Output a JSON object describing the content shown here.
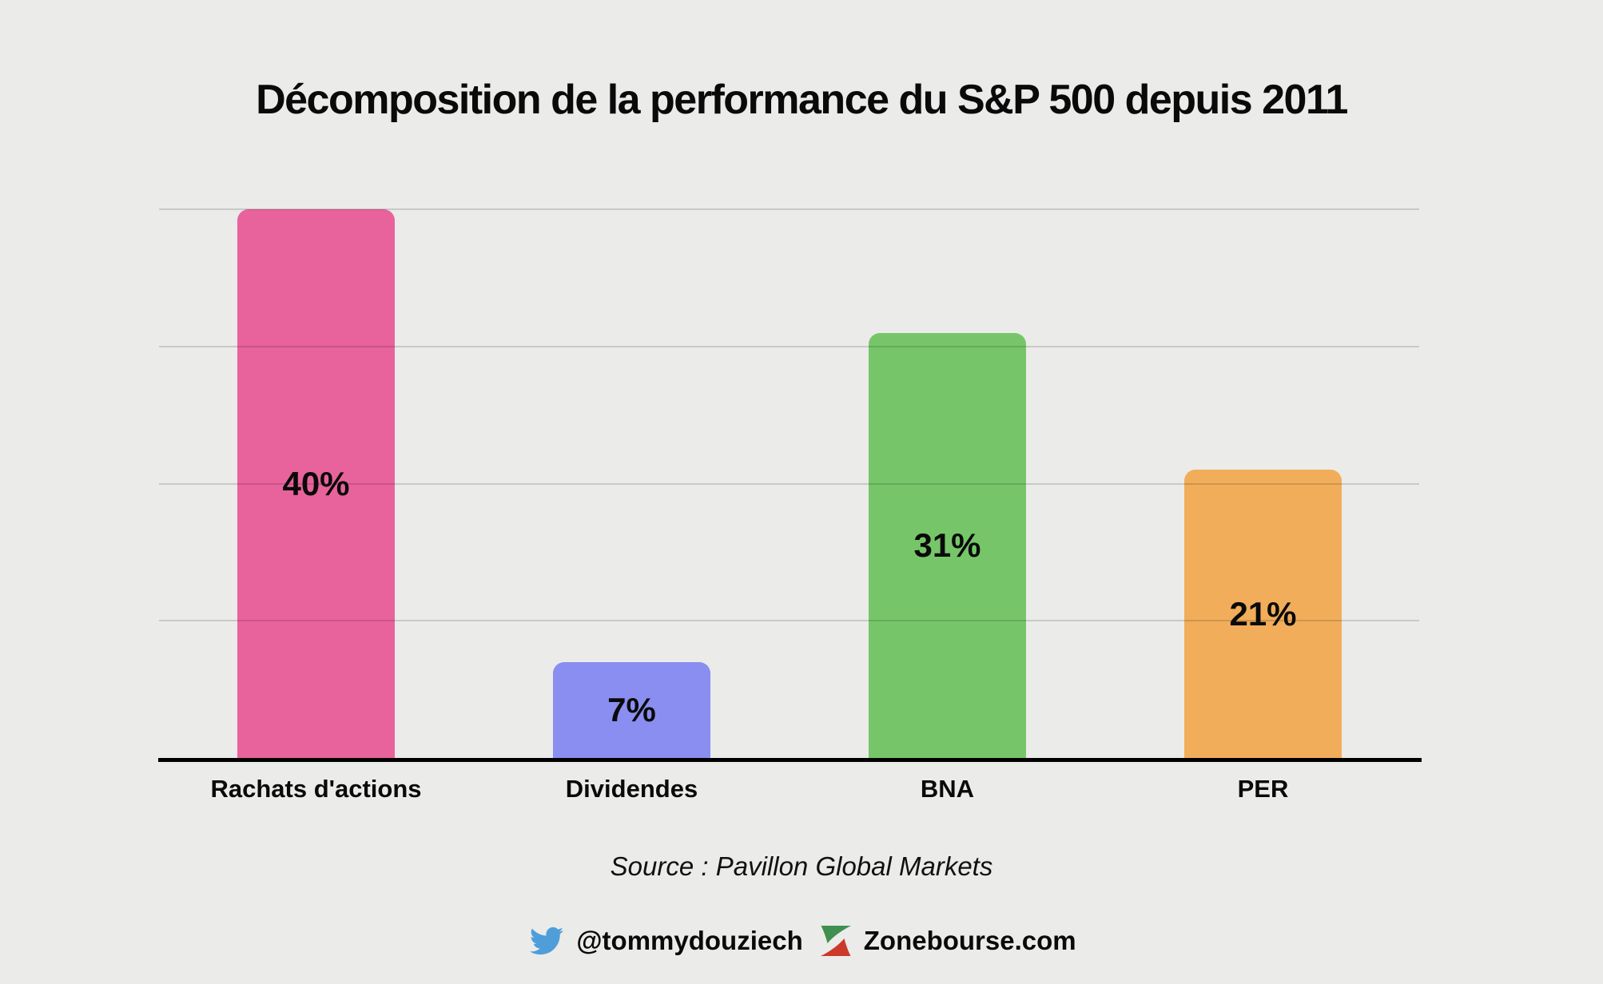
{
  "title": "Décomposition de la performance du S&P 500 depuis 2011",
  "chart_data": {
    "type": "bar",
    "categories": [
      "Rachats d'actions",
      "Dividendes",
      "BNA",
      "PER"
    ],
    "values": [
      40,
      7,
      31,
      21
    ],
    "value_labels": [
      "40%",
      "7%",
      "31%",
      "21%"
    ],
    "bar_colors": [
      "#e8639b",
      "#8a8ef0",
      "#76c669",
      "#f1ad5a"
    ],
    "title": "Décomposition de la performance du S&P 500 depuis 2011",
    "xlabel": "",
    "ylabel": "",
    "ylim": [
      0,
      41
    ],
    "gridlines": [
      10,
      20,
      30,
      40
    ],
    "grid": true,
    "legend": false,
    "value_label_position": "center-inside-bar"
  },
  "source_note": "Source : Pavillon Global Markets",
  "footer": {
    "twitter_icon": "twitter-bird-icon",
    "twitter_handle": "@tommydouziech",
    "site_logo": "zonebourse-logo",
    "site_name": "Zonebourse.com"
  },
  "colors": {
    "background": "#ebebe9",
    "axis": "#000000",
    "gridline": "#c8c8c6",
    "text": "#0a0a0a",
    "twitter_blue": "#4f9ed9",
    "zonebourse_green": "#3f8f4f",
    "zonebourse_red": "#cc392b"
  }
}
